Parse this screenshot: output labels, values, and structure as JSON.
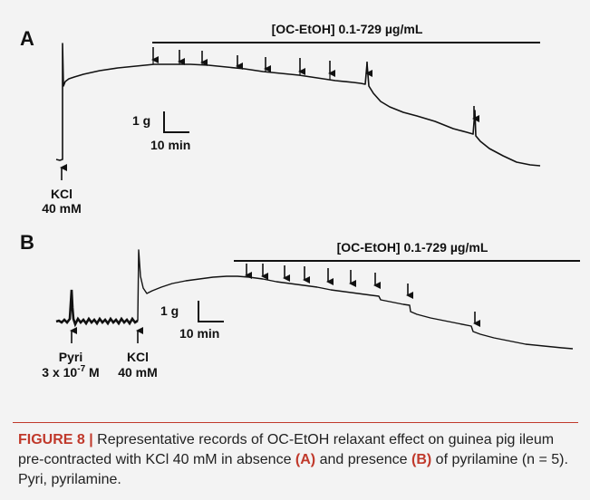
{
  "panel_a": {
    "letter": "A",
    "treatment_label": "[OC-EtOH] 0.1-729 µg/mL",
    "scale_y": "1 g",
    "scale_x": "10 min",
    "kcl_label_1": "KCl",
    "kcl_label_2": "40 mM"
  },
  "panel_b": {
    "letter": "B",
    "treatment_label": "[OC-EtOH] 0.1-729 µg/mL",
    "scale_y": "1 g",
    "scale_x": "10 min",
    "pyri_label_1": "Pyri",
    "pyri_label_2_base": "3 x 10",
    "pyri_label_2_exp": "-7",
    "pyri_label_2_unit": " M",
    "kcl_label_1": "KCl",
    "kcl_label_2": "40 mM"
  },
  "caption": {
    "figure_label": "FIGURE 8 |",
    "text_1": " Representative records of OC-EtOH relaxant effect on guinea pig ileum pre-contracted with KCl 40 mM in absence ",
    "a_ref": "(A)",
    "text_2": " and presence ",
    "b_ref": "(B)",
    "text_3": " of pyrilamine (n = 5). Pyri, pyrilamine."
  },
  "colors": {
    "accent": "#c0392b",
    "trace": "#111111",
    "background": "#f3f3f3"
  }
}
